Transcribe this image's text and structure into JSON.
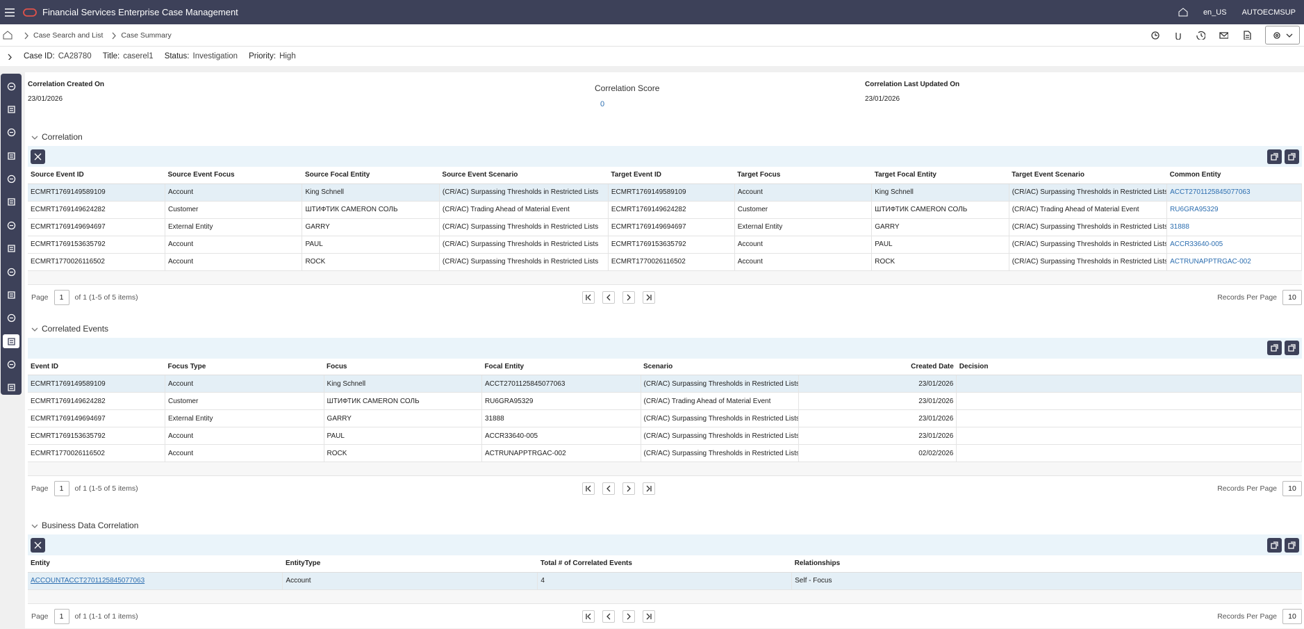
{
  "header": {
    "title": "Financial Services Enterprise Case Management",
    "locale": "en_US",
    "user": "AUTOECMSUP"
  },
  "breadcrumbs": [
    "Case Search and List",
    "Case Summary"
  ],
  "case_bar": [
    {
      "label": "Case ID:",
      "value": "CA28780"
    },
    {
      "label": "Title:",
      "value": "caserel1"
    },
    {
      "label": "Status:",
      "value": "Investigation"
    },
    {
      "label": "Priority:",
      "value": "High"
    }
  ],
  "summary": [
    {
      "label": "Correlation Created On",
      "value": "23/01/2026"
    },
    {
      "label": "Correlation Score",
      "value": 0
    },
    {
      "label": "Correlation Last Updated On",
      "value": "23/01/2026"
    }
  ],
  "sections": [
    {
      "title": "Correlation",
      "columns": [
        "Source Event ID",
        "Source Event Focus",
        "Source Focal Entity",
        "Source Event Scenario",
        "Target Event ID",
        "Target Focus",
        "Target Focal Entity",
        "Target Event Scenario",
        "Common Entity"
      ],
      "rows": [
        [
          "ECMRT1769149589109",
          "Account",
          "King Schnell",
          "(CR/AC) Surpassing Thresholds in Restricted Lists",
          "ECMRT1769149589109",
          "Account",
          "King Schnell",
          "(CR/AC) Surpassing Thresholds in Restricted Lists",
          "ACCT2701125845077063"
        ],
        [
          "ECMRT1769149624282",
          "Customer",
          "ШТИФТИК CAMERON СОЛЬ",
          "(CR/AC) Trading Ahead of Material Event",
          "ECMRT1769149624282",
          "Customer",
          "ШТИФТИК CAMERON СОЛЬ",
          "(CR/AC) Trading Ahead of Material Event",
          "RU6GRA95329"
        ],
        [
          "ECMRT1769149694697",
          "External Entity",
          "GARRY",
          "(CR/AC) Surpassing Thresholds in Restricted Lists",
          "ECMRT1769149694697",
          "External Entity",
          "GARRY",
          "(CR/AC) Surpassing Thresholds in Restricted Lists",
          "31888"
        ],
        [
          "ECMRT1769153635792",
          "Account",
          "PAUL",
          "(CR/AC) Surpassing Thresholds in Restricted Lists",
          "ECMRT1769153635792",
          "Account",
          "PAUL",
          "(CR/AC) Surpassing Thresholds in Restricted Lists",
          "ACCR33640-005"
        ],
        [
          "ECMRT1770026116502",
          "Account",
          "ROCK",
          "(CR/AC) Surpassing Thresholds in Restricted Lists",
          "ECMRT1770026116502",
          "Account",
          "ROCK",
          "(CR/AC) Surpassing Thresholds in Restricted Lists",
          "ACTRUNAPPTRGAC-002"
        ]
      ],
      "pagination": {
        "page_label": "Page",
        "page": 1,
        "info": "of 1 (1-5 of 5 items)",
        "records_label": "Records Per Page",
        "records": 10
      }
    },
    {
      "title": "Correlated Events",
      "columns": [
        "Event ID",
        "Focus Type",
        "Focus",
        "Focal Entity",
        "Scenario",
        "Created Date",
        "Decision"
      ],
      "rows": [
        [
          "ECMRT1769149589109",
          "Account",
          "King Schnell",
          "ACCT2701125845077063",
          "(CR/AC) Surpassing Thresholds in Restricted Lists",
          "23/01/2026"
        ],
        [
          "ECMRT1769149624282",
          "Customer",
          "ШТИФТИК CAMERON СОЛЬ",
          "RU6GRA95329",
          "(CR/AC) Trading Ahead of Material Event",
          "23/01/2026"
        ],
        [
          "ECMRT1769149694697",
          "External Entity",
          "GARRY",
          "31888",
          "(CR/AC) Surpassing Thresholds in Restricted Lists",
          "23/01/2026"
        ],
        [
          "ECMRT1769153635792",
          "Account",
          "PAUL",
          "ACCR33640-005",
          "(CR/AC) Surpassing Thresholds in Restricted Lists",
          "23/01/2026"
        ],
        [
          "ECMRT1770026116502",
          "Account",
          "ROCK",
          "ACTRUNAPPTRGAC-002",
          "(CR/AC) Surpassing Thresholds in Restricted Lists",
          "02/02/2026"
        ]
      ],
      "pagination": {
        "page_label": "Page",
        "page": 1,
        "info": "of 1 (1-5 of 5 items)",
        "records_label": "Records Per Page",
        "records": 10
      }
    },
    {
      "title": "Business Data Correlation",
      "columns": [
        "Entity",
        "EntityType",
        "Total # of Correlated Events",
        "Relationships"
      ],
      "rows": [
        [
          "ACCOUNTACCT2701125845077063",
          "Account",
          4,
          "Self - Focus"
        ]
      ],
      "pagination": {
        "page_label": "Page",
        "page": 1,
        "info": "of 1 (1-1 of 1 items)",
        "records_label": "Records Per Page",
        "records": 10
      }
    }
  ]
}
